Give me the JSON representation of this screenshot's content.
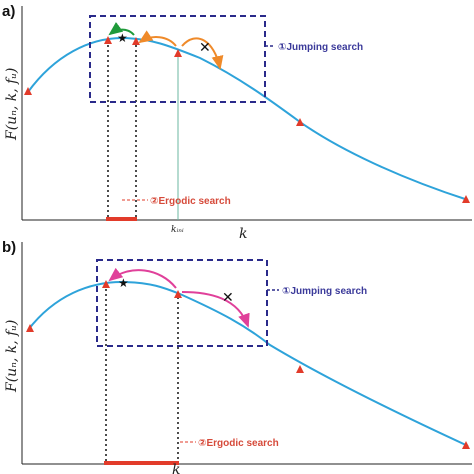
{
  "panel_a": {
    "label": "a)",
    "ylabel": "F(uₙ, k, fᵤ)",
    "xlabel": "k",
    "k_ini_label": "kᵢₙᵢ",
    "jumping_label": "①Jumping search",
    "ergodic_label": "②Ergodic search"
  },
  "panel_b": {
    "label": "b)",
    "ylabel": "F(uₙ, k, fᵤ)",
    "xlabel": "k",
    "jumping_label": "①Jumping search",
    "ergodic_label": "②Ergodic search"
  },
  "colors": {
    "curve": "#2ea3da",
    "marker": "#e23b2a",
    "box": "#2a2a8a",
    "arrow_orange": "#ef8a2a",
    "arrow_green": "#1f9a3a",
    "arrow_pink": "#e0409a"
  }
}
